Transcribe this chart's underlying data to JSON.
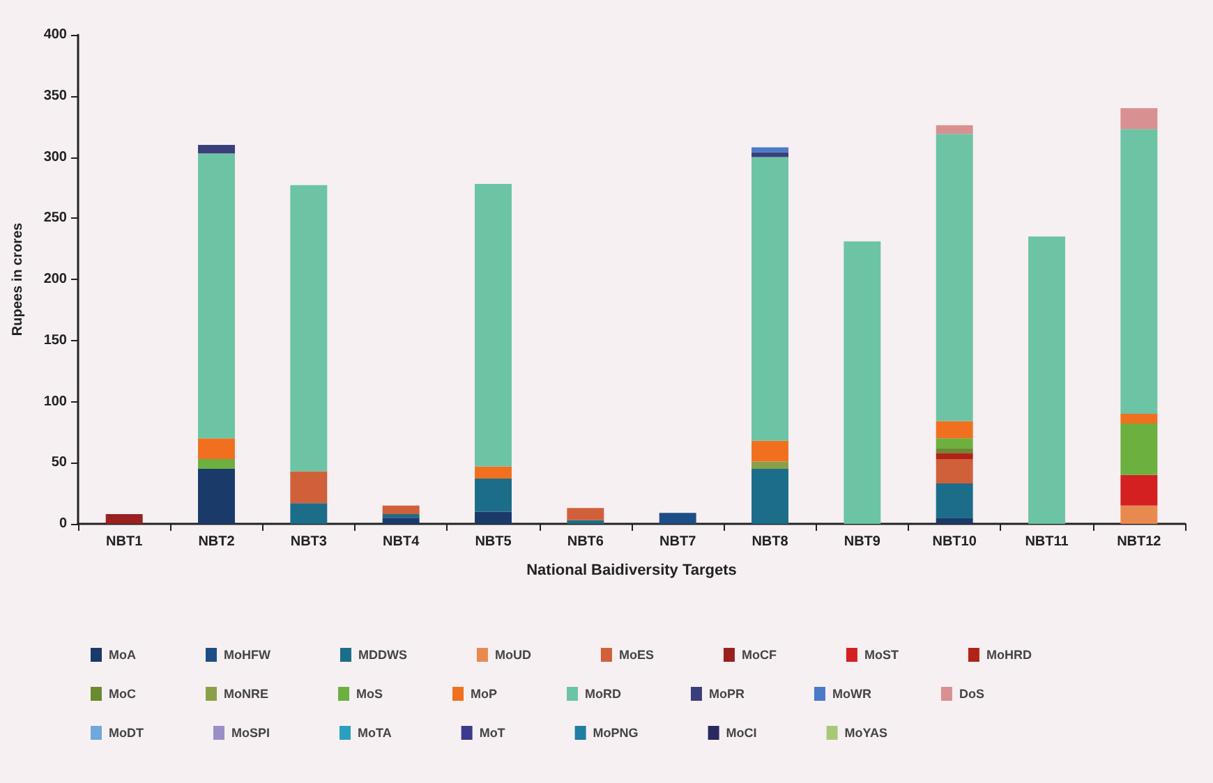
{
  "chart_data": {
    "type": "bar",
    "stacked": true,
    "xlabel": "National Baidiversity Targets",
    "ylabel": "Rupees in crores",
    "categories": [
      "NBT1",
      "NBT2",
      "NBT3",
      "NBT4",
      "NBT5",
      "NBT6",
      "NBT7",
      "NBT8",
      "NBT9",
      "NBT10",
      "NBT11",
      "NBT12"
    ],
    "ylim": [
      0,
      400
    ],
    "yticks": [
      0,
      50,
      100,
      150,
      200,
      250,
      300,
      350,
      400
    ],
    "grid": false,
    "legend": "bottom",
    "series": [
      {
        "name": "MoA",
        "color": "#1a3a6a",
        "values": [
          null,
          45,
          null,
          5,
          10,
          null,
          null,
          null,
          null,
          5,
          null,
          null
        ]
      },
      {
        "name": "MoHFW",
        "color": "#1d4f86",
        "values": [
          null,
          null,
          null,
          null,
          null,
          null,
          9,
          null,
          null,
          null,
          null,
          null
        ]
      },
      {
        "name": "MDDWS",
        "color": "#1b6d8a",
        "values": [
          null,
          null,
          17,
          3,
          27,
          3,
          null,
          45,
          null,
          28,
          null,
          null
        ]
      },
      {
        "name": "MoUD",
        "color": "#e88a50",
        "values": [
          null,
          null,
          null,
          null,
          null,
          null,
          null,
          null,
          null,
          null,
          null,
          15
        ]
      },
      {
        "name": "MoES",
        "color": "#d0603a",
        "values": [
          null,
          null,
          26,
          7,
          null,
          10,
          null,
          null,
          null,
          20,
          null,
          null
        ]
      },
      {
        "name": "MoCF",
        "color": "#9a2020",
        "values": [
          8,
          null,
          null,
          null,
          null,
          null,
          null,
          null,
          null,
          null,
          null,
          null
        ]
      },
      {
        "name": "MoST",
        "color": "#d42020",
        "values": [
          null,
          null,
          null,
          null,
          null,
          null,
          null,
          null,
          null,
          null,
          null,
          25
        ]
      },
      {
        "name": "MoHRD",
        "color": "#b02418",
        "values": [
          null,
          null,
          null,
          null,
          null,
          null,
          null,
          null,
          null,
          5,
          null,
          null
        ]
      },
      {
        "name": "MoC",
        "color": "#6a8a30",
        "values": [
          null,
          null,
          null,
          null,
          null,
          null,
          null,
          null,
          null,
          4,
          null,
          null
        ]
      },
      {
        "name": "MoNRE",
        "color": "#8aa048",
        "values": [
          null,
          null,
          null,
          null,
          null,
          null,
          null,
          6,
          null,
          null,
          null,
          null
        ]
      },
      {
        "name": "MoS",
        "color": "#6cb040",
        "values": [
          null,
          8,
          null,
          null,
          null,
          null,
          null,
          null,
          null,
          8,
          null,
          42
        ]
      },
      {
        "name": "MoP",
        "color": "#f07020",
        "values": [
          null,
          17,
          null,
          null,
          10,
          null,
          null,
          17,
          null,
          14,
          null,
          8
        ]
      },
      {
        "name": "MoRD",
        "color": "#6cc4a4",
        "values": [
          null,
          233,
          234,
          null,
          231,
          null,
          null,
          232,
          231,
          235,
          235,
          233
        ]
      },
      {
        "name": "MoPR",
        "color": "#3a3f7a",
        "values": [
          null,
          7,
          null,
          null,
          null,
          null,
          null,
          4,
          null,
          null,
          null,
          null
        ]
      },
      {
        "name": "MoWR",
        "color": "#4a7ac8",
        "values": [
          null,
          null,
          null,
          null,
          null,
          null,
          null,
          4,
          null,
          null,
          null,
          null
        ]
      },
      {
        "name": "DoS",
        "color": "#d89090",
        "values": [
          null,
          null,
          null,
          null,
          null,
          null,
          null,
          null,
          null,
          7,
          null,
          17
        ]
      },
      {
        "name": "MoDT",
        "color": "#6fa8dc",
        "values": [
          null,
          null,
          null,
          null,
          null,
          null,
          null,
          null,
          null,
          null,
          null,
          null
        ]
      },
      {
        "name": "MoSPI",
        "color": "#9b8fc8",
        "values": [
          null,
          null,
          null,
          null,
          null,
          null,
          null,
          null,
          null,
          null,
          null,
          null
        ]
      },
      {
        "name": "MoTA",
        "color": "#2aa0c0",
        "values": [
          null,
          null,
          null,
          null,
          null,
          null,
          null,
          null,
          null,
          null,
          null,
          null
        ]
      },
      {
        "name": "MoT",
        "color": "#3b3a8c",
        "values": [
          null,
          null,
          null,
          null,
          null,
          null,
          null,
          null,
          null,
          null,
          null,
          null
        ]
      },
      {
        "name": "MoPNG",
        "color": "#1f7fa0",
        "values": [
          null,
          null,
          null,
          null,
          null,
          null,
          null,
          null,
          null,
          null,
          null,
          null
        ]
      },
      {
        "name": "MoCI",
        "color": "#2a2a60",
        "values": [
          null,
          null,
          null,
          null,
          null,
          null,
          null,
          null,
          null,
          null,
          null,
          null
        ]
      },
      {
        "name": "MoYAS",
        "color": "#a8c878",
        "values": [
          null,
          null,
          null,
          null,
          null,
          null,
          null,
          null,
          null,
          null,
          null,
          null
        ]
      }
    ]
  }
}
